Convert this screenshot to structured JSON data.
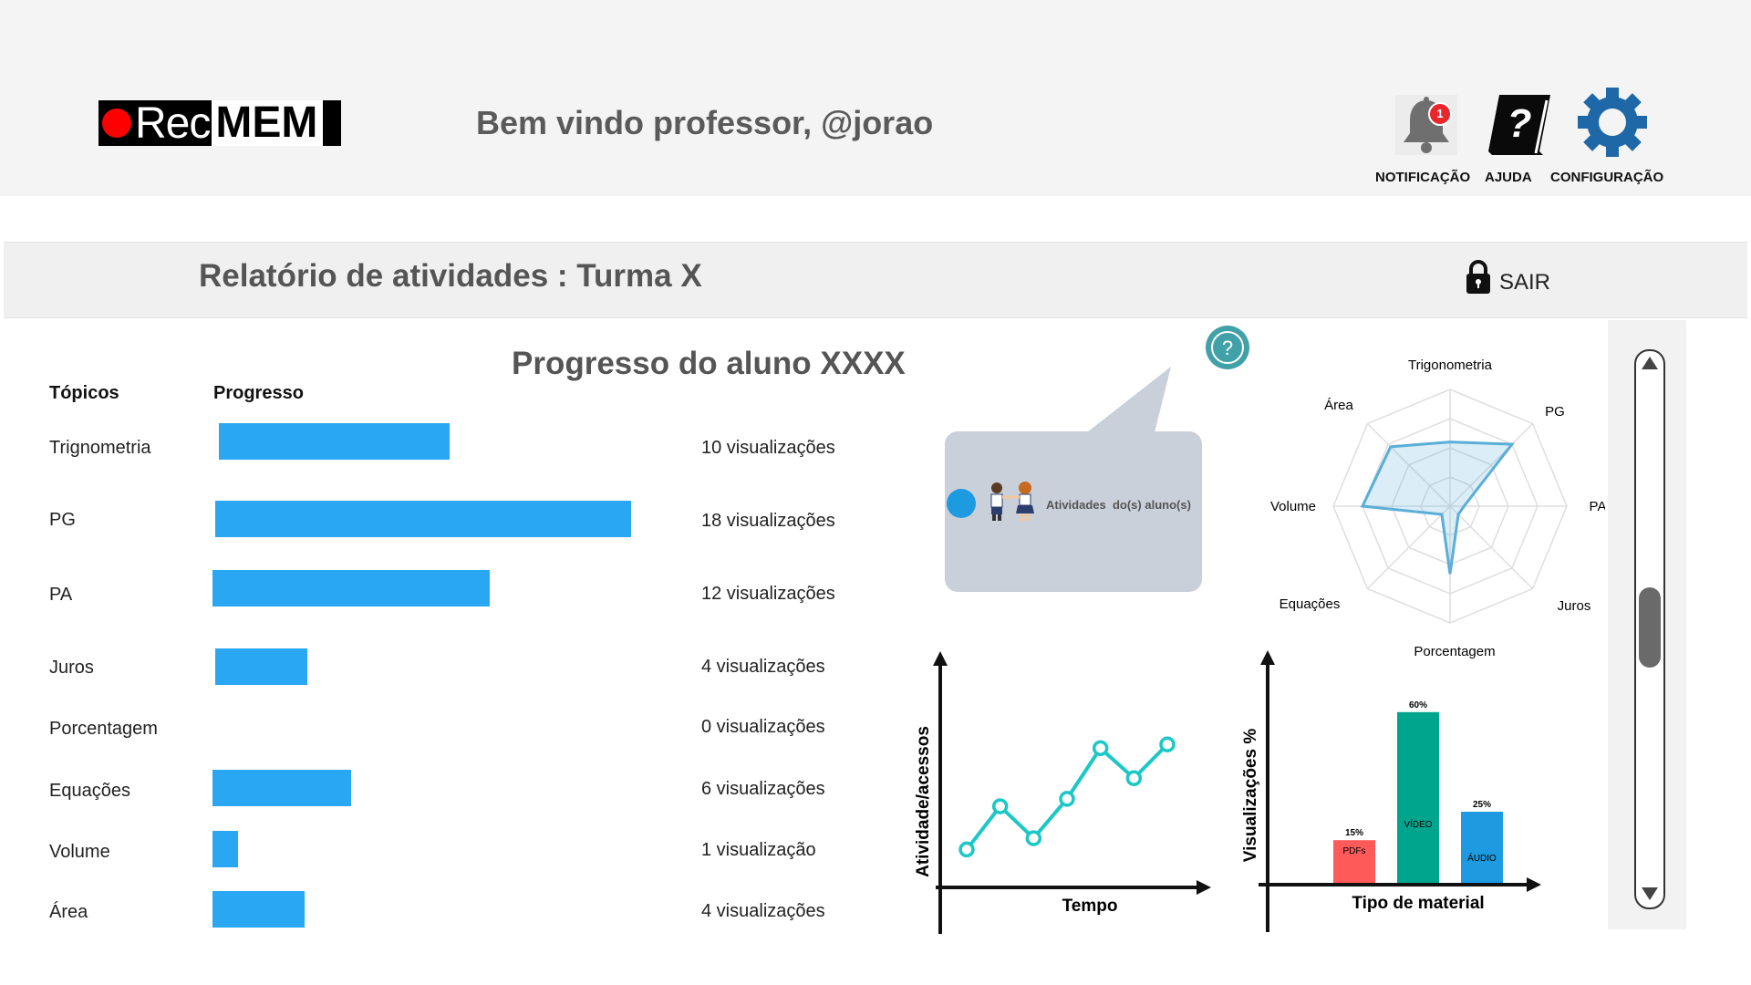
{
  "header": {
    "logo_text_rec": "Rec",
    "logo_text_mem": "MEM",
    "welcome": "Bem vindo professor, @jorao",
    "notification_label": "NOTIFICAÇÃO",
    "notification_count": "1",
    "help_label": "AJUDA",
    "settings_label": "CONFIGURAÇÃO"
  },
  "report": {
    "title": "Relatório de atividades : Turma X",
    "logout_label": "SAIR"
  },
  "progress": {
    "title": "Progresso do aluno XXXX",
    "col_topics": "Tópicos",
    "col_progress": "Progresso",
    "rows": [
      {
        "topic": "Trignometria",
        "views": "10 visualizações",
        "value": 10
      },
      {
        "topic": "PG",
        "views": "18 visualizações",
        "value": 18
      },
      {
        "topic": "PA",
        "views": "12 visualizações",
        "value": 12
      },
      {
        "topic": "Juros",
        "views": "4 visualizações",
        "value": 4
      },
      {
        "topic": "Porcentagem",
        "views": "0 visualizações",
        "value": 0
      },
      {
        "topic": "Equações",
        "views": "6 visualizações",
        "value": 6
      },
      {
        "topic": "Volume",
        "views": "1 visualização",
        "value": 1
      },
      {
        "topic": "Área",
        "views": "4 visualizações",
        "value": 4
      }
    ]
  },
  "legend_popup": {
    "label": "Atividades  do(s) aluno(s)",
    "help_icon": "question-icon"
  },
  "colors": {
    "bar": "#2aa7f2",
    "radar": "#5aaed8",
    "line": "#1cc7c7",
    "pdf": "#ff5a5a",
    "video": "#00a58e",
    "audio": "#1e9be0"
  },
  "chart_data": [
    {
      "type": "radar",
      "axes": [
        "Trigonometria",
        "PG",
        "PA",
        "Juros",
        "Porcentagem",
        "Equações",
        "Volume",
        "Área"
      ],
      "values": [
        0.55,
        0.75,
        0.12,
        0.1,
        0.58,
        0.1,
        0.75,
        0.72
      ],
      "rmax": 1
    },
    {
      "type": "line",
      "xlabel": "Tempo",
      "ylabel": "Atividade/acessos",
      "values": [
        1,
        3.3,
        1.6,
        3.7,
        6.4,
        4.8,
        6.6
      ]
    },
    {
      "type": "bar",
      "xlabel": "Tipo de material",
      "ylabel": "Visualizações %",
      "categories": [
        "PDFs",
        "VÍDEO",
        "ÁUDIO"
      ],
      "values": [
        15,
        60,
        25
      ],
      "labels": [
        "15%",
        "60%",
        "25%"
      ]
    }
  ]
}
